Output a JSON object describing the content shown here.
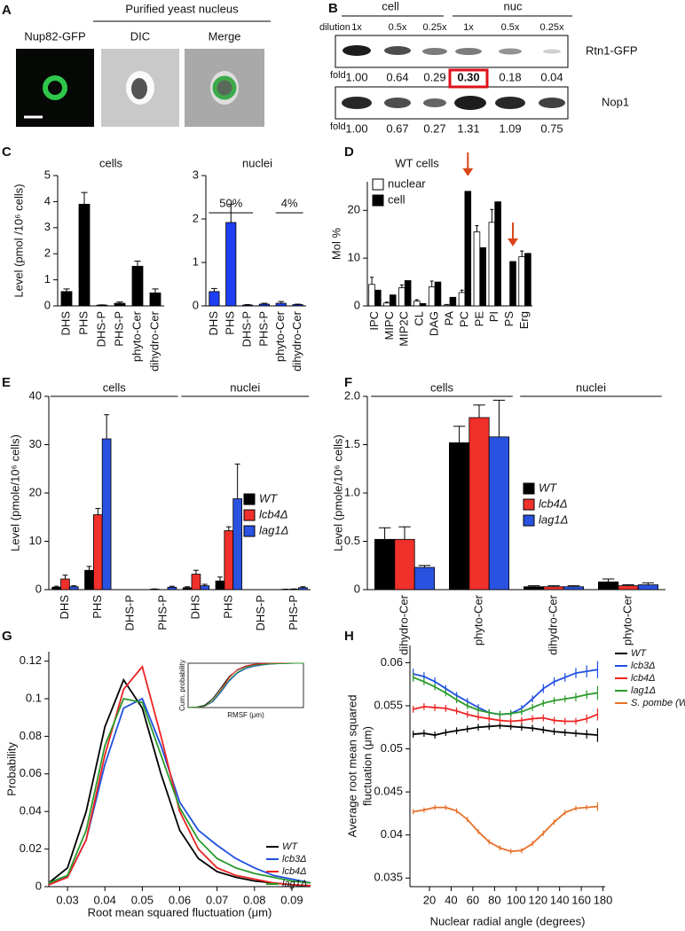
{
  "figure": {
    "panel_a": {
      "letter": "A",
      "title": "Purified yeast nucleus",
      "labels": [
        "Nup82-GFP",
        "DIC",
        "Merge"
      ]
    },
    "panel_b": {
      "letter": "B",
      "groups": [
        "cell",
        "nuc"
      ],
      "dilution_label": "dilution",
      "dilutions": [
        "1x",
        "0.5x",
        "0.25x",
        "1x",
        "0.5x",
        "0.25x"
      ],
      "blots": [
        {
          "name": "Rtn1-GFP",
          "fold_label": "fold",
          "fold": [
            "1.00",
            "0.64",
            "0.29",
            "0.30",
            "0.18",
            "0.04"
          ]
        },
        {
          "name": "Nop1",
          "fold_label": "fold",
          "fold": [
            "1.00",
            "0.67",
            "0.27",
            "1.31",
            "1.09",
            "0.75"
          ]
        }
      ]
    }
  },
  "chart_data": [
    {
      "type": "bar",
      "panel": "C",
      "title": "cells",
      "ylabel": "Level (pmol /10⁶ cells)",
      "categories": [
        "DHS",
        "PHS",
        "DHS-P",
        "PHS-P",
        "phyto-Cer",
        "dihydro-Cer"
      ],
      "values": [
        0.55,
        3.9,
        0.03,
        0.1,
        1.52,
        0.5
      ],
      "errors": [
        0.1,
        0.45,
        0.01,
        0.05,
        0.2,
        0.15
      ],
      "color": "#000000",
      "ylim": [
        0,
        5
      ],
      "yticks": [
        0,
        1,
        2,
        3,
        4,
        5
      ]
    },
    {
      "type": "bar",
      "title": "nuclei",
      "categories": [
        "DHS",
        "PHS",
        "DHS-P",
        "PHS-P",
        "phyto-Cer",
        "dihydro-Cer"
      ],
      "values": [
        0.33,
        1.92,
        0.02,
        0.04,
        0.06,
        0.03
      ],
      "errors": [
        0.07,
        0.42,
        0.01,
        0.02,
        0.04,
        0.01
      ],
      "color": "#1f3ff5",
      "ylim": [
        0,
        3
      ],
      "yticks": [
        0,
        1,
        2,
        3
      ],
      "annotations": [
        {
          "text": "50%"
        },
        {
          "text": "4%"
        }
      ]
    },
    {
      "type": "bar",
      "panel": "D",
      "title": "WT cells",
      "ylabel": "Mol %",
      "categories": [
        "IPC",
        "MIPC",
        "MIP2C",
        "CL",
        "DAG",
        "PA",
        "PC",
        "PE",
        "PI",
        "PS",
        "Erg"
      ],
      "series": [
        {
          "name": "nuclear",
          "color": "#ffffff",
          "values": [
            4.5,
            0.6,
            3.8,
            1.0,
            4.0,
            0.2,
            2.8,
            15.5,
            17.5,
            0,
            10.3
          ],
          "errors": [
            1.5,
            0.2,
            0.6,
            0.3,
            1.2,
            0.1,
            0.5,
            1.3,
            2.7,
            0,
            1.2
          ]
        },
        {
          "name": "cell",
          "color": "#000000",
          "values": [
            3.3,
            2.3,
            5.3,
            0.5,
            5.0,
            1.8,
            24,
            12.2,
            21.8,
            9.3,
            11
          ]
        }
      ],
      "ylim": [
        0,
        26
      ],
      "yticks": [
        0,
        10,
        20
      ],
      "legend": "top-left"
    },
    {
      "type": "bar",
      "panel": "E",
      "ylabel": "Level (pmole/10⁶ cells)",
      "groups": [
        "cells",
        "nuclei"
      ],
      "categories": [
        "DHS",
        "PHS",
        "DHS-P",
        "PHS-P",
        "DHS",
        "PHS",
        "DHS-P",
        "PHS-P"
      ],
      "series": [
        {
          "name": "WT",
          "color": "#000000",
          "values": [
            0.5,
            4,
            0,
            0.1,
            0.4,
            1.8,
            0,
            0.05
          ],
          "errors": [
            0.2,
            0.8,
            0,
            0.05,
            0.2,
            0.8,
            0,
            0.05
          ]
        },
        {
          "name": "lcb4Δ",
          "color": "#f0302a",
          "values": [
            2.2,
            15.5,
            0,
            0,
            3.2,
            12.2,
            0,
            0.1
          ],
          "errors": [
            0.8,
            1.3,
            0,
            0,
            0.8,
            0.8,
            0,
            0.05
          ]
        },
        {
          "name": "lag1Δ",
          "color": "#2a52e0",
          "values": [
            0.6,
            31.2,
            0,
            0.5,
            0.8,
            18.8,
            0,
            0.4
          ],
          "errors": [
            0.2,
            5,
            0,
            0.2,
            0.3,
            7.2,
            0,
            0.2
          ]
        }
      ],
      "ylim": [
        0,
        40
      ],
      "yticks": [
        0,
        10,
        20,
        30,
        40
      ],
      "legend": "middle-right"
    },
    {
      "type": "bar",
      "panel": "F",
      "ylabel": "Level (pmole/10⁶ cells)",
      "groups": [
        "cells",
        "nuclei"
      ],
      "categories": [
        "dihydro-Cer",
        "phyto-Cer",
        "dihydro-Cer",
        "phyto-Cer"
      ],
      "series": [
        {
          "name": "WT",
          "color": "#000000",
          "values": [
            0.52,
            1.52,
            0.03,
            0.08
          ],
          "errors": [
            0.12,
            0.17,
            0.01,
            0.03
          ]
        },
        {
          "name": "lcb4Δ",
          "color": "#f0302a",
          "values": [
            0.52,
            1.78,
            0.03,
            0.04
          ],
          "errors": [
            0.13,
            0.13,
            0.01,
            0.01
          ]
        },
        {
          "name": "lag1Δ",
          "color": "#2a52e0",
          "values": [
            0.23,
            1.58,
            0.03,
            0.05
          ],
          "errors": [
            0.02,
            0.38,
            0.01,
            0.02
          ]
        }
      ],
      "ylim": [
        0,
        2
      ],
      "yticks": [
        0,
        0.5,
        {
          "value": 1,
          "label": "1.0"
        },
        1.5,
        {
          "value": 2,
          "label": "2.0"
        }
      ],
      "legend": "middle-right"
    },
    {
      "type": "line",
      "panel": "G",
      "xlabel": "Root mean squared fluctuation (μm)",
      "ylabel": "Probability",
      "x": [
        0.025,
        0.03,
        0.035,
        0.04,
        0.045,
        0.05,
        0.055,
        0.06,
        0.065,
        0.07,
        0.075,
        0.08,
        0.085,
        0.09,
        0.095
      ],
      "series": [
        {
          "name": "WT",
          "color": "#000000",
          "values": [
            0.002,
            0.01,
            0.04,
            0.085,
            0.11,
            0.095,
            0.06,
            0.03,
            0.015,
            0.008,
            0.005,
            0.003,
            0.002,
            0.001,
            0.0005
          ]
        },
        {
          "name": "lcb3Δ",
          "color": "#1f4fe0",
          "values": [
            0.002,
            0.005,
            0.025,
            0.065,
            0.095,
            0.1,
            0.075,
            0.045,
            0.03,
            0.022,
            0.015,
            0.01,
            0.006,
            0.004,
            0.002
          ]
        },
        {
          "name": "lcb4Δ",
          "color": "#ee2222",
          "values": [
            0.001,
            0.005,
            0.025,
            0.07,
            0.105,
            0.117,
            0.08,
            0.04,
            0.02,
            0.01,
            0.006,
            0.004,
            0.002,
            0.001,
            0.0005
          ]
        },
        {
          "name": "lag1Δ",
          "color": "#2a9a2a",
          "values": [
            0.002,
            0.006,
            0.03,
            0.075,
            0.1,
            0.098,
            0.07,
            0.042,
            0.025,
            0.015,
            0.01,
            0.007,
            0.005,
            0.003,
            0.002
          ]
        }
      ],
      "xlim": [
        0.025,
        0.095
      ],
      "xticks": [
        0.03,
        0.04,
        0.05,
        0.06,
        0.07,
        0.08,
        0.09
      ],
      "ylim": [
        0,
        0.125
      ],
      "yticks": [
        0,
        0.02,
        0.04,
        0.06,
        0.08,
        0.1,
        0.12
      ],
      "legend": "lower-right"
    },
    {
      "type": "line",
      "xlabel": "RMSF (μm)",
      "ylabel": "Cum. probability",
      "x": [
        0.025,
        0.03,
        0.035,
        0.04,
        0.045,
        0.05,
        0.055,
        0.06,
        0.065,
        0.07,
        0.075,
        0.08,
        0.085,
        0.09,
        0.095
      ],
      "series": [
        {
          "color": "#000000",
          "values": [
            0,
            0.01,
            0.05,
            0.2,
            0.45,
            0.7,
            0.85,
            0.93,
            0.97,
            0.985,
            0.99,
            0.995,
            1,
            1,
            1
          ]
        },
        {
          "color": "#1f4fe0",
          "values": [
            0,
            0.005,
            0.03,
            0.13,
            0.35,
            0.6,
            0.78,
            0.88,
            0.93,
            0.96,
            0.98,
            0.99,
            0.995,
            1,
            1
          ]
        },
        {
          "color": "#ee2222",
          "values": [
            0,
            0.005,
            0.03,
            0.15,
            0.4,
            0.68,
            0.86,
            0.94,
            0.975,
            0.99,
            0.995,
            1,
            1,
            1,
            1
          ]
        },
        {
          "color": "#2a9a2a",
          "values": [
            0,
            0.005,
            0.035,
            0.15,
            0.38,
            0.63,
            0.8,
            0.9,
            0.95,
            0.97,
            0.985,
            0.99,
            0.995,
            1,
            1
          ]
        }
      ],
      "xlim": [
        0.025,
        0.095
      ],
      "ylim": [
        0,
        1
      ]
    },
    {
      "type": "line",
      "panel": "H",
      "xlabel": "Nuclear radial angle (degrees)",
      "ylabel": [
        "Average root mean squared",
        "fluctuation (μm)"
      ],
      "x": [
        5,
        15,
        25,
        35,
        45,
        55,
        65,
        75,
        85,
        95,
        105,
        115,
        125,
        135,
        145,
        155,
        165,
        175
      ],
      "series": [
        {
          "name": "WT",
          "color": "#000000",
          "values": [
            0.0517,
            0.0518,
            0.0516,
            0.0519,
            0.0521,
            0.0523,
            0.0525,
            0.0526,
            0.0527,
            0.0526,
            0.0525,
            0.0524,
            0.0522,
            0.052,
            0.0519,
            0.0518,
            0.0517,
            0.0516
          ],
          "errors": [
            0.0004,
            0.0004,
            0.0004,
            0.0004,
            0.0004,
            0.0004,
            0.0004,
            0.0004,
            0.0004,
            0.0004,
            0.0004,
            0.0004,
            0.0004,
            0.0004,
            0.0004,
            0.0004,
            0.0005,
            0.0008
          ]
        },
        {
          "name": "lcb3Δ",
          "color": "#1f4fe0",
          "values": [
            0.0587,
            0.0584,
            0.0578,
            0.057,
            0.0562,
            0.0555,
            0.0548,
            0.0542,
            0.054,
            0.0541,
            0.0547,
            0.0558,
            0.057,
            0.0578,
            0.0583,
            0.0588,
            0.059,
            0.0592
          ],
          "errors": [
            0.0006,
            0.0005,
            0.0005,
            0.0004,
            0.0004,
            0.0004,
            0.0004,
            0.0004,
            0.0004,
            0.0004,
            0.0004,
            0.0004,
            0.0005,
            0.0005,
            0.0005,
            0.0006,
            0.0007,
            0.001
          ]
        },
        {
          "name": "lcb4Δ",
          "color": "#ee2222",
          "values": [
            0.0546,
            0.0549,
            0.0548,
            0.0547,
            0.0544,
            0.054,
            0.0537,
            0.0535,
            0.0533,
            0.0532,
            0.0533,
            0.0535,
            0.0536,
            0.0533,
            0.0532,
            0.0532,
            0.0535,
            0.054
          ],
          "errors": [
            0.0004,
            0.0004,
            0.0004,
            0.0004,
            0.0004,
            0.0004,
            0.0004,
            0.0004,
            0.0004,
            0.0004,
            0.0004,
            0.0004,
            0.0004,
            0.0004,
            0.0004,
            0.0004,
            0.0005,
            0.0007
          ]
        },
        {
          "name": "lag1Δ",
          "color": "#2a9a2a",
          "values": [
            0.0583,
            0.0578,
            0.0572,
            0.0565,
            0.0557,
            0.055,
            0.0545,
            0.0542,
            0.054,
            0.0541,
            0.0543,
            0.0548,
            0.0553,
            0.0556,
            0.0558,
            0.056,
            0.0563,
            0.0565
          ],
          "errors": [
            0.0005,
            0.0004,
            0.0004,
            0.0004,
            0.0004,
            0.0004,
            0.0004,
            0.0004,
            0.0004,
            0.0004,
            0.0004,
            0.0004,
            0.0004,
            0.0004,
            0.0004,
            0.0005,
            0.0005,
            0.0008
          ]
        },
        {
          "name": "S. pombe (WT)",
          "color": "#e8702a",
          "values": [
            0.0427,
            0.0429,
            0.0432,
            0.0432,
            0.0428,
            0.0418,
            0.0404,
            0.0392,
            0.0385,
            0.0381,
            0.0382,
            0.039,
            0.0402,
            0.0415,
            0.0426,
            0.0431,
            0.0432,
            0.0433
          ],
          "errors": [
            0.0003,
            0.0003,
            0.0003,
            0.0003,
            0.0003,
            0.0003,
            0.0003,
            0.0003,
            0.0003,
            0.0003,
            0.0003,
            0.0003,
            0.0003,
            0.0003,
            0.0003,
            0.0003,
            0.0003,
            0.0005
          ]
        }
      ],
      "xlim": [
        2,
        182
      ],
      "xticks": [
        20,
        40,
        60,
        80,
        100,
        120,
        140,
        160,
        180
      ],
      "ylim": [
        0.034,
        0.062
      ],
      "yticks": [
        0.035,
        0.04,
        0.045,
        0.05,
        0.055,
        0.06
      ],
      "legend": "right"
    }
  ]
}
